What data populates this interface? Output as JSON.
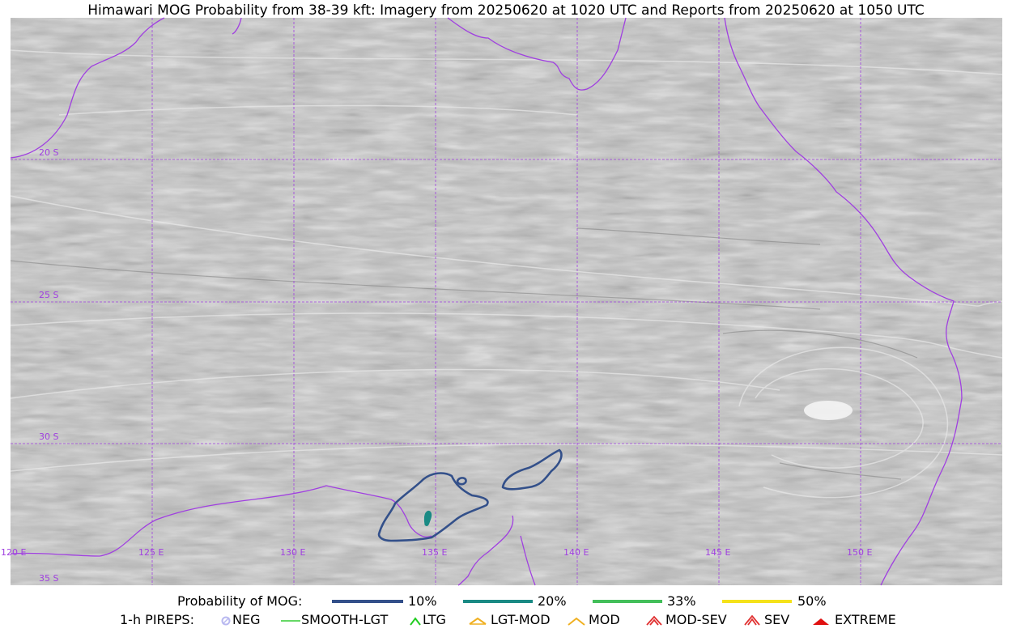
{
  "title": "Himawari MOG Probability from 38-39 kft: Imagery from 20250620 at 1020 UTC and Reports from 20250620 at 1050 UTC",
  "map": {
    "lat_labels": [
      "20 S",
      "25 S",
      "30 S",
      "35 S"
    ],
    "lon_labels": [
      "120 E",
      "125 E",
      "130 E",
      "135 E",
      "140 E",
      "145 E",
      "150 E"
    ],
    "coastline_color": "#a040e0",
    "grid_color": "#a040e0"
  },
  "legend": {
    "mog_title": "Probability of MOG:",
    "mog_levels": [
      {
        "label": "10%",
        "color": "#33508a"
      },
      {
        "label": "20%",
        "color": "#1a8a84"
      },
      {
        "label": "33%",
        "color": "#43bf5a"
      },
      {
        "label": "50%",
        "color": "#f5e21a"
      }
    ],
    "pireps_title": "1-h PIREPS:",
    "pireps": [
      {
        "label": "NEG",
        "color": "#b8b8f0",
        "icon": "neg-circle-icon"
      },
      {
        "label": "SMOOTH-LGT",
        "color": "#33cc33",
        "icon": "line-icon"
      },
      {
        "label": "LTG",
        "color": "#22cc22",
        "icon": "caret-icon"
      },
      {
        "label": "LGT-MOD",
        "color": "#f0b020",
        "icon": "caret-flat-icon"
      },
      {
        "label": "MOD",
        "color": "#f0b020",
        "icon": "caret-icon"
      },
      {
        "label": "MOD-SEV",
        "color": "#e03030",
        "icon": "double-caret-icon"
      },
      {
        "label": "SEV",
        "color": "#e03030",
        "icon": "double-caret-icon"
      },
      {
        "label": "EXTREME",
        "color": "#e01010",
        "icon": "filled-caret-icon"
      }
    ]
  }
}
